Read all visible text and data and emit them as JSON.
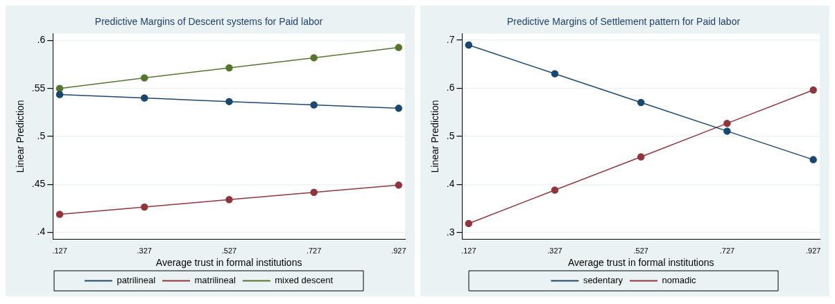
{
  "chart_data": [
    {
      "type": "line",
      "title": "Predictive Margins of Descent systems for Paid labor",
      "xlabel": "Average trust in formal institutions",
      "ylabel": "Linear Prediction",
      "x": [
        0.127,
        0.327,
        0.527,
        0.727,
        0.927
      ],
      "series": [
        {
          "name": "patrilineal",
          "color": "#1a476f",
          "values": [
            0.5436,
            0.54,
            0.5363,
            0.5328,
            0.5293
          ]
        },
        {
          "name": "matrilineal",
          "color": "#90353b",
          "values": [
            0.4186,
            0.4262,
            0.434,
            0.4416,
            0.4491
          ]
        },
        {
          "name": "mixed descent",
          "color": "#55752f",
          "values": [
            0.55,
            0.561,
            0.5715,
            0.582,
            0.5927
          ]
        }
      ],
      "xlim": [
        0.111,
        0.942
      ],
      "xticks": [
        {
          "value": 0.127,
          "label": ".127"
        },
        {
          "value": 0.327,
          "label": ".327"
        },
        {
          "value": 0.527,
          "label": ".527"
        },
        {
          "value": 0.727,
          "label": ".727"
        },
        {
          "value": 0.927,
          "label": ".927"
        }
      ],
      "ylim": [
        0.393,
        0.607
      ],
      "yticks": [
        {
          "value": 0.4,
          "label": ".4"
        },
        {
          "value": 0.45,
          "label": ".45"
        },
        {
          "value": 0.5,
          "label": ".5"
        },
        {
          "value": 0.55,
          "label": ".55"
        },
        {
          "value": 0.6,
          "label": ".6"
        }
      ],
      "grid": "y",
      "legend": "bottom",
      "marker": "circle",
      "line_style": "solid"
    },
    {
      "type": "line",
      "title": "Predictive Margins of Settlement pattern for Paid labor",
      "xlabel": "Average trust in formal institutions",
      "ylabel": "Linear Prediction",
      "x": [
        0.127,
        0.327,
        0.527,
        0.727,
        0.927
      ],
      "series": [
        {
          "name": "sedentary",
          "color": "#1a476f",
          "values": [
            0.6898,
            0.63,
            0.5703,
            0.5108,
            0.4515
          ]
        },
        {
          "name": "nomadic",
          "color": "#90353b",
          "values": [
            0.3189,
            0.3884,
            0.4574,
            0.527,
            0.5962
          ]
        }
      ],
      "xlim": [
        0.112,
        0.942
      ],
      "xticks": [
        {
          "value": 0.127,
          "label": ".127"
        },
        {
          "value": 0.327,
          "label": ".327"
        },
        {
          "value": 0.527,
          "label": ".527"
        },
        {
          "value": 0.727,
          "label": ".727"
        },
        {
          "value": 0.927,
          "label": ".927"
        }
      ],
      "ylim": [
        0.287,
        0.713
      ],
      "yticks": [
        {
          "value": 0.3,
          "label": ".3"
        },
        {
          "value": 0.4,
          "label": ".4"
        },
        {
          "value": 0.5,
          "label": ".5"
        },
        {
          "value": 0.6,
          "label": ".6"
        },
        {
          "value": 0.7,
          "label": ".7"
        }
      ],
      "grid": "y",
      "legend": "bottom",
      "marker": "circle",
      "line_style": "solid"
    }
  ]
}
